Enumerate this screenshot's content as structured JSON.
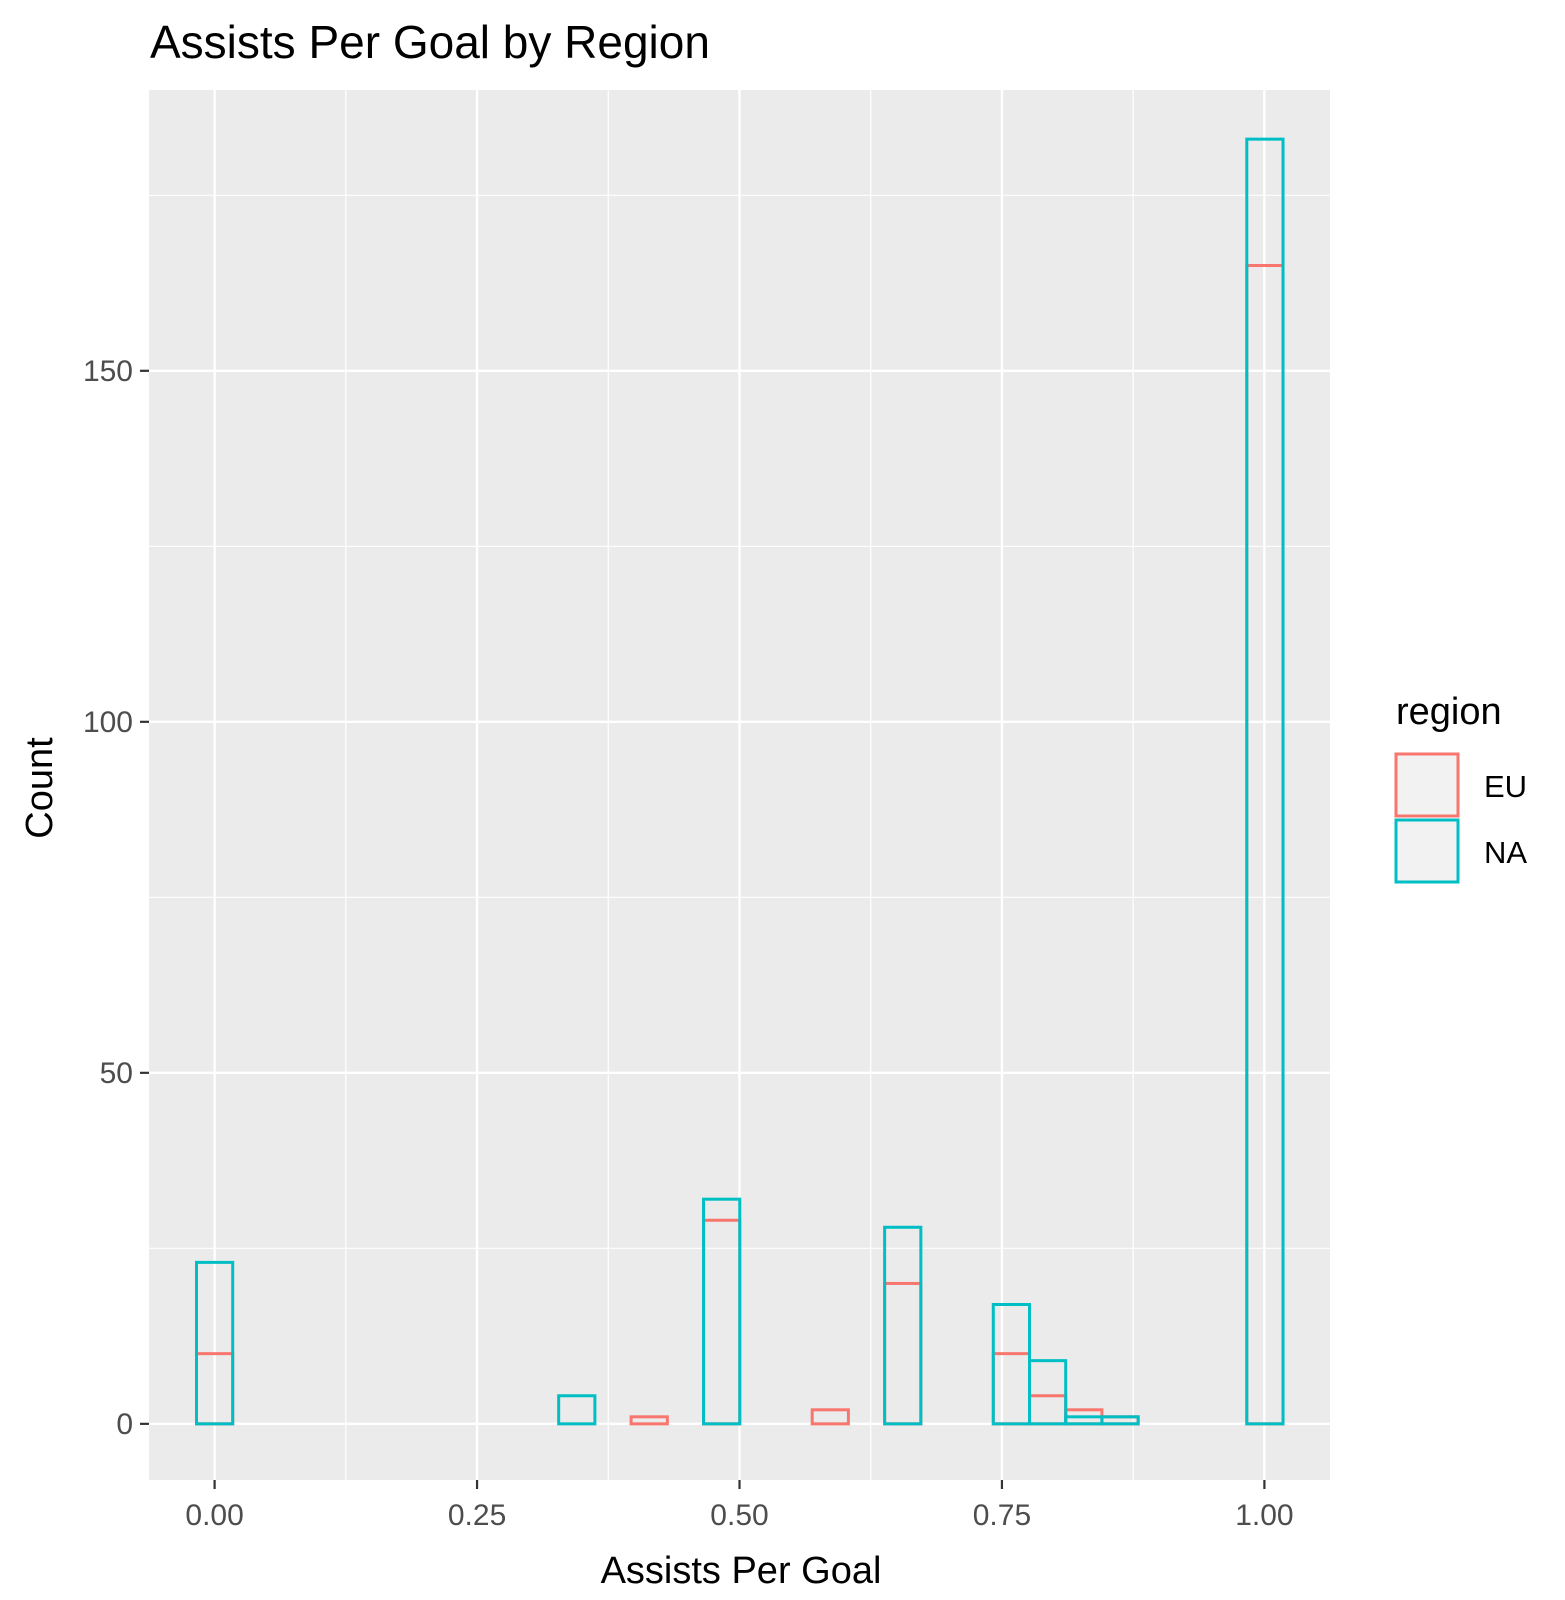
{
  "chart_data": {
    "type": "histogram",
    "title": "Assists Per Goal by Region",
    "xlabel": "Assists Per Goal",
    "ylabel": "Count",
    "xlim": [
      -0.0625,
      1.0625
    ],
    "ylim": [
      -8,
      190
    ],
    "x_ticks": [
      "0.00",
      "0.25",
      "0.50",
      "0.75",
      "1.00"
    ],
    "x_tick_values": [
      0,
      0.25,
      0.5,
      0.75,
      1.0
    ],
    "y_ticks": [
      "0",
      "50",
      "100",
      "150"
    ],
    "y_tick_values": [
      0,
      50,
      100,
      150
    ],
    "grid": true,
    "bin_width": 0.0345,
    "bin_start": -0.01725,
    "bin_count": 30,
    "legend": {
      "title": "region",
      "position": "right",
      "entries": [
        {
          "label": "EU",
          "color": "#F8766D"
        },
        {
          "label": "NA",
          "color": "#00BFC4"
        }
      ]
    },
    "series": [
      {
        "name": "EU",
        "color": "#F8766D",
        "values": [
          10,
          0,
          0,
          0,
          0,
          0,
          0,
          0,
          0,
          0,
          0,
          0,
          1,
          0,
          29,
          0,
          0,
          2,
          0,
          20,
          0,
          0,
          10,
          4,
          2,
          1,
          0,
          0,
          0,
          165
        ]
      },
      {
        "name": "NA",
        "color": "#00BFC4",
        "values": [
          23,
          0,
          0,
          0,
          0,
          0,
          0,
          0,
          0,
          0,
          4,
          0,
          0,
          0,
          32,
          0,
          0,
          0,
          0,
          28,
          0,
          0,
          17,
          9,
          1,
          1,
          0,
          0,
          0,
          183
        ]
      }
    ]
  }
}
